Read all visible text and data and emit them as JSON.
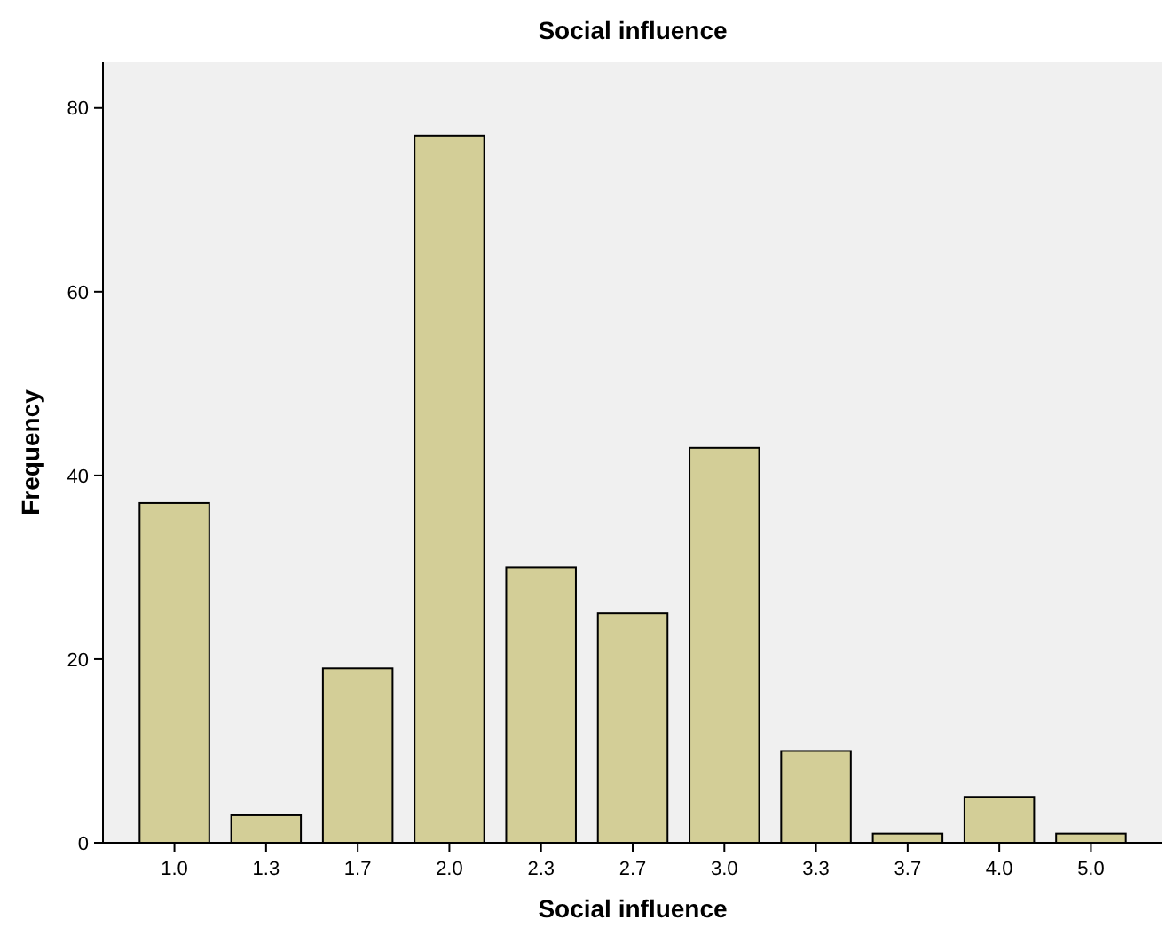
{
  "chart_data": {
    "type": "bar",
    "title": "Social influence",
    "xlabel": "Social influence",
    "ylabel": "Frequency",
    "categories": [
      "1.0",
      "1.3",
      "1.7",
      "2.0",
      "2.3",
      "2.7",
      "3.0",
      "3.3",
      "3.7",
      "4.0",
      "5.0"
    ],
    "values": [
      37,
      3,
      19,
      77,
      30,
      25,
      43,
      10,
      1,
      5,
      1
    ],
    "color": "#d3ce97",
    "ylim": [
      0,
      85
    ],
    "yticks": [
      0,
      20,
      40,
      60,
      80
    ],
    "grid": false
  }
}
